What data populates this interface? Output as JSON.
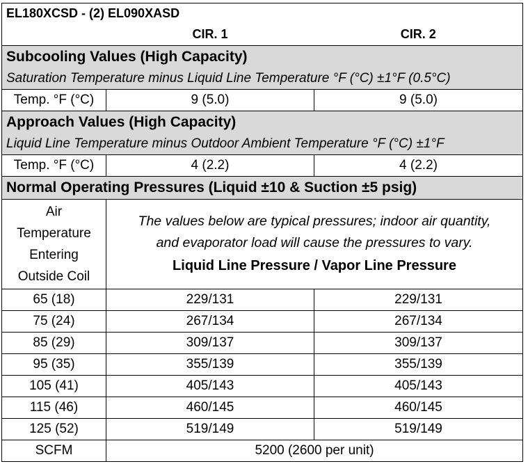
{
  "model": "EL180XCSD - (2) EL090XASD",
  "circuits": [
    "CIR. 1",
    "CIR. 2"
  ],
  "subcooling": {
    "title": "Subcooling Values (High Capacity)",
    "subtitle": "Saturation Temperature minus Liquid Line Temperature  °F (°C) ±1°F (0.5°C)",
    "row_label": "Temp. °F (°C)",
    "cir1": "9 (5.0)",
    "cir2": "9 (5.0)"
  },
  "approach": {
    "title": "Approach Values (High Capacity)",
    "subtitle": "Liquid Line Temperature minus Outdoor Ambient Temperature °F (°C)  ±1°F",
    "row_label": "Temp. °F (°C)",
    "cir1": "4 (2.2)",
    "cir2": "4 (2.2)"
  },
  "pressures": {
    "title": "Normal Operating Pressures (Liquid ±10 & Suction ±5 psig)",
    "air_temp_label": [
      "Air",
      "Temperature",
      "Entering",
      "Outside Coil"
    ],
    "note_line1": "The values below are typical pressures; indoor air quantity,",
    "note_line2": "and evaporator load will cause the pressures to vary.",
    "note_heading": "Liquid Line Pressure / Vapor Line Pressure",
    "rows": [
      {
        "temp": "65 (18)",
        "cir1": "229/131",
        "cir2": "229/131"
      },
      {
        "temp": "75 (24)",
        "cir1": "267/134",
        "cir2": "267/134"
      },
      {
        "temp": "85 (29)",
        "cir1": "309/137",
        "cir2": "309/137"
      },
      {
        "temp": "95 (35)",
        "cir1": "355/139",
        "cir2": "355/139"
      },
      {
        "temp": "105 (41)",
        "cir1": "405/143",
        "cir2": "405/143"
      },
      {
        "temp": "115 (46)",
        "cir1": "460/145",
        "cir2": "460/145"
      },
      {
        "temp": "125 (52)",
        "cir1": "519/149",
        "cir2": "519/149"
      }
    ],
    "scfm_label": "SCFM",
    "scfm_value": "5200 (2600 per unit)"
  }
}
